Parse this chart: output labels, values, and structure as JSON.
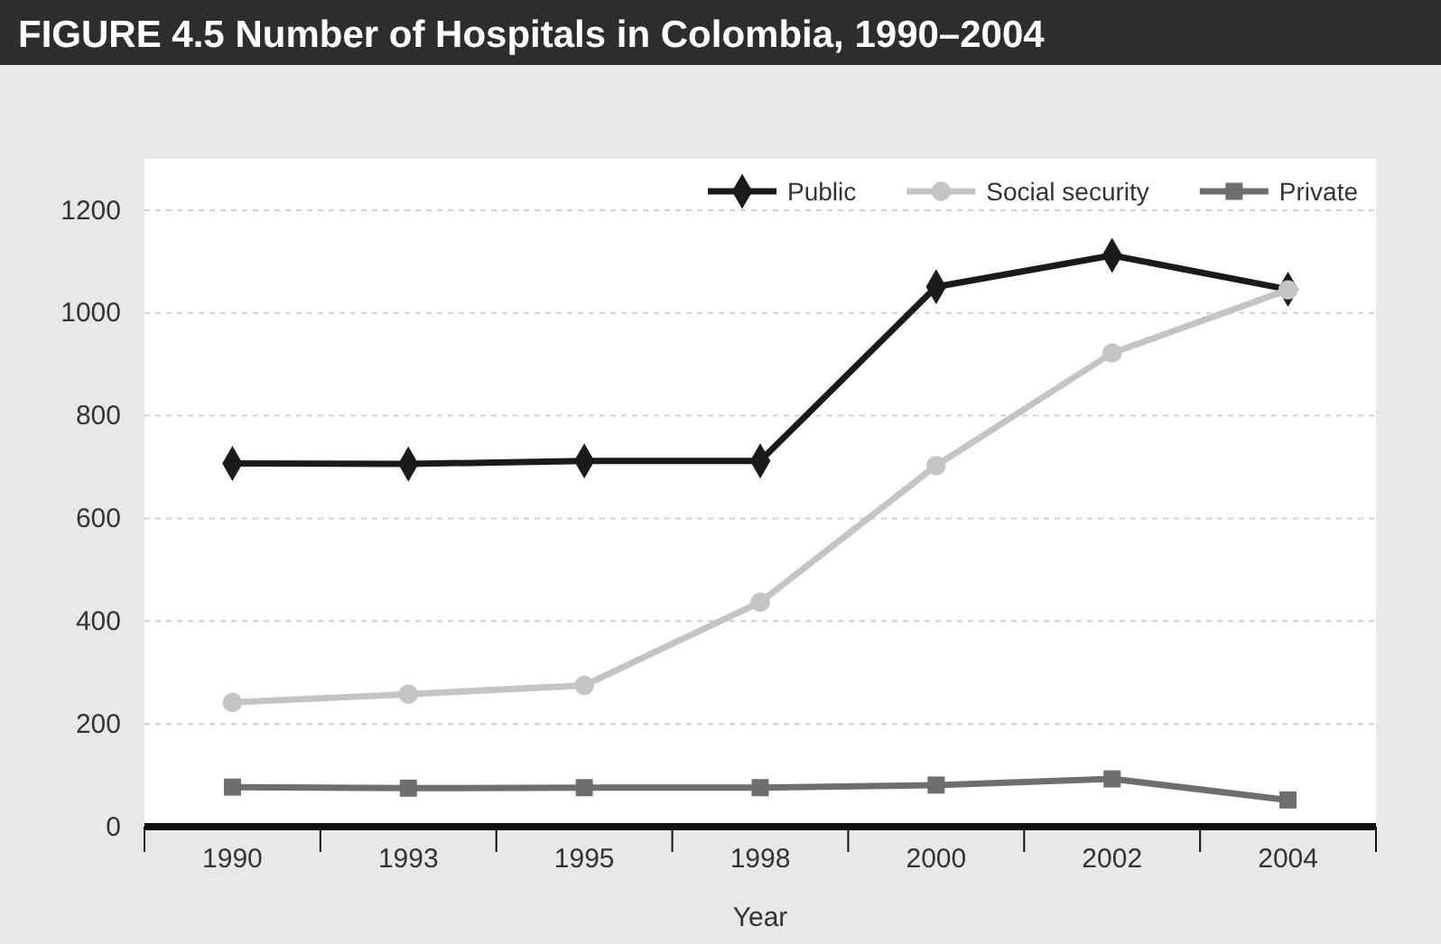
{
  "chart_data": {
    "type": "line",
    "title": "FIGURE 4.5  Number of Hospitals in Colombia, 1990–2004",
    "xlabel": "Year",
    "categories": [
      "1990",
      "1993",
      "1995",
      "1998",
      "2000",
      "2002",
      "2004"
    ],
    "series": [
      {
        "name": "Public",
        "color": "#1a1a1a",
        "marker": "diamond",
        "values": [
          707,
          706,
          712,
          712,
          1051,
          1112,
          1046
        ]
      },
      {
        "name": "Social security",
        "color": "#c4c4c4",
        "marker": "circle",
        "values": [
          242,
          258,
          275,
          437,
          703,
          922,
          1045
        ]
      },
      {
        "name": "Private",
        "color": "#6e6e6e",
        "marker": "square",
        "values": [
          77,
          75,
          76,
          76,
          81,
          93,
          52
        ]
      }
    ],
    "ylim": [
      0,
      1300
    ],
    "yticks": [
      0,
      200,
      400,
      600,
      800,
      1000,
      1200
    ],
    "grid": "y",
    "legend": "top right",
    "line_style": "solid"
  }
}
